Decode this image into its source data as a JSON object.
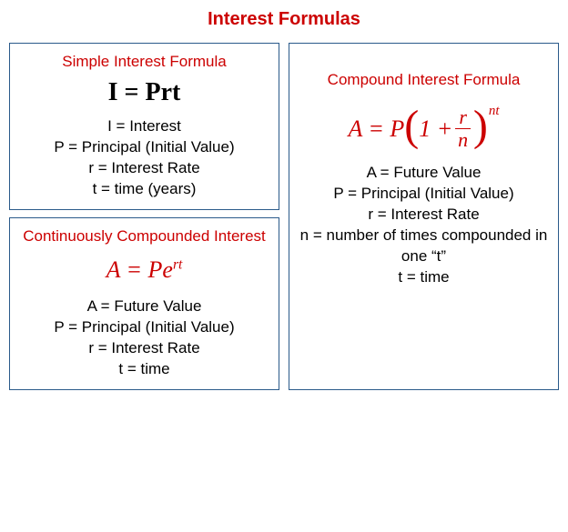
{
  "title": "Interest Formulas",
  "colors": {
    "accent": "#cc0000",
    "border": "#2a5a8a",
    "text": "#000000",
    "background": "#ffffff"
  },
  "simple": {
    "title": "Simple Interest Formula",
    "formula": "I = Prt",
    "defs": {
      "I": "I = Interest",
      "P": "P = Principal (Initial Value)",
      "r": "r = Interest Rate",
      "t": "t = time (years)"
    }
  },
  "continuous": {
    "title": "Continuously Compounded Interest",
    "formula_base": "A = Pe",
    "formula_exp": "rt",
    "defs": {
      "A": "A = Future Value",
      "P": "P = Principal (Initial Value)",
      "r": "r = Interest Rate",
      "t": "t = time"
    }
  },
  "compound": {
    "title": "Compound Interest Formula",
    "lhs": "A = P",
    "one_plus": "1 +",
    "frac_num": "r",
    "frac_den": "n",
    "exp": "nt",
    "defs": {
      "A": "A = Future  Value",
      "P": "P = Principal (Initial Value)",
      "r": "r = Interest Rate",
      "n": "n = number of times compounded in one “t”",
      "t": "t = time"
    }
  }
}
